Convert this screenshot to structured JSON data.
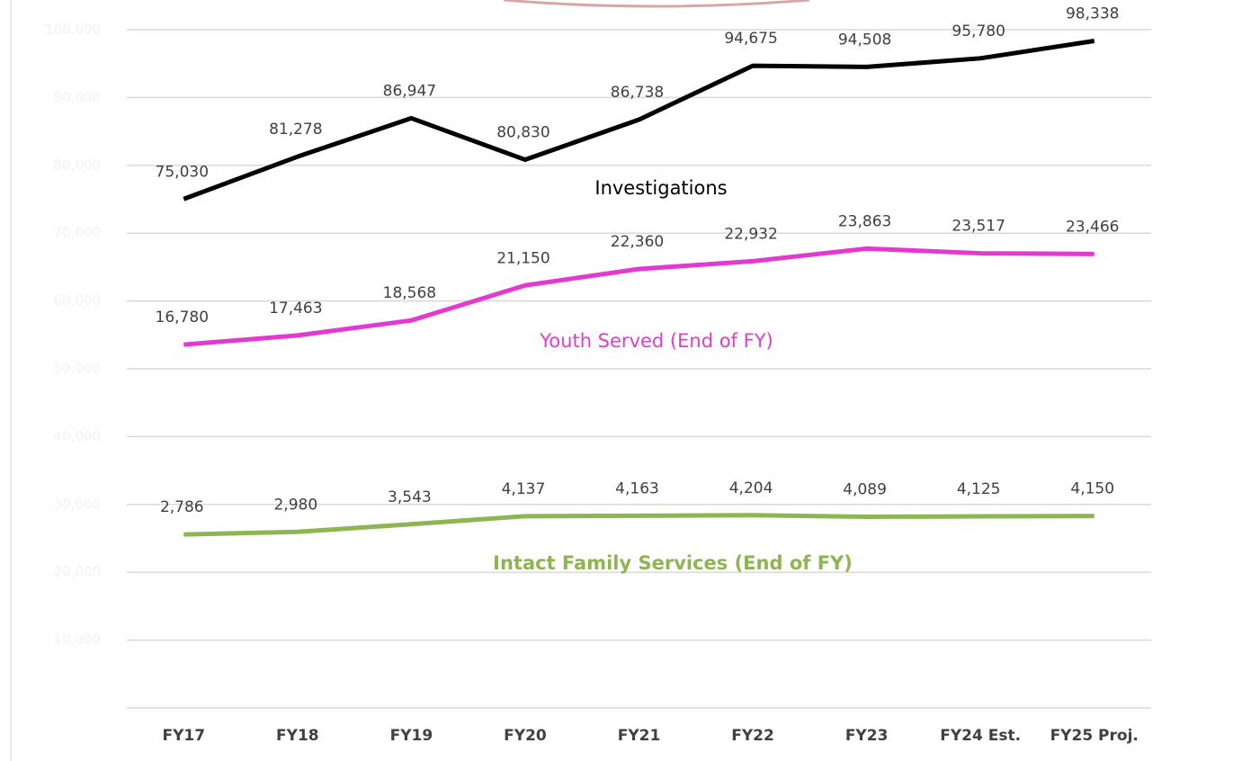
{
  "chart_data": {
    "type": "line",
    "categories": [
      "FY17",
      "FY18",
      "FY19",
      "FY20",
      "FY21",
      "FY22",
      "FY23",
      "FY24 Est.",
      "FY25 Proj."
    ],
    "series": [
      {
        "name": "Investigations",
        "color": "#000000",
        "axis": "y2",
        "values": [
          75030,
          81278,
          86947,
          80830,
          86738,
          94675,
          94508,
          95780,
          98338
        ],
        "value_labels": [
          "75,030",
          "81,278",
          "86,947",
          "80,830",
          "86,738",
          "94,675",
          "94,508",
          "95,780",
          "98,338"
        ]
      },
      {
        "name": "Youth Served (End of FY)",
        "color": "#e23ad0",
        "values": [
          16780,
          17463,
          18568,
          21150,
          22360,
          22932,
          23863,
          23517,
          23466
        ],
        "value_labels": [
          "16,780",
          "17,463",
          "18,568",
          "21,150",
          "22,360",
          "22,932",
          "23,863",
          "23,517",
          "23,466"
        ]
      },
      {
        "name": "Intact Family Services (End of FY)",
        "color": "#8db552",
        "values": [
          2786,
          2980,
          3543,
          4137,
          4163,
          4204,
          4089,
          4125,
          4150
        ],
        "value_labels": [
          "2,786",
          "2,980",
          "3,543",
          "4,137",
          "4,163",
          "4,204",
          "4,089",
          "4,125",
          "4,150"
        ]
      }
    ],
    "ylim": [
      -10000,
      40000
    ],
    "y2lim": [
      0,
      100000
    ],
    "y2ticks": [
      {
        "value": 10000,
        "label": "10,000"
      },
      {
        "value": 20000,
        "label": "20,000"
      },
      {
        "value": 30000,
        "label": "30,000"
      },
      {
        "value": 40000,
        "label": "40,000"
      },
      {
        "value": 50000,
        "label": "50,000"
      },
      {
        "value": 60000,
        "label": "60,000"
      },
      {
        "value": 70000,
        "label": "70,000"
      },
      {
        "value": 80000,
        "label": "80,000"
      },
      {
        "value": 90000,
        "label": "90,000"
      },
      {
        "value": 100000,
        "label": "100,000"
      }
    ],
    "grid": true
  }
}
